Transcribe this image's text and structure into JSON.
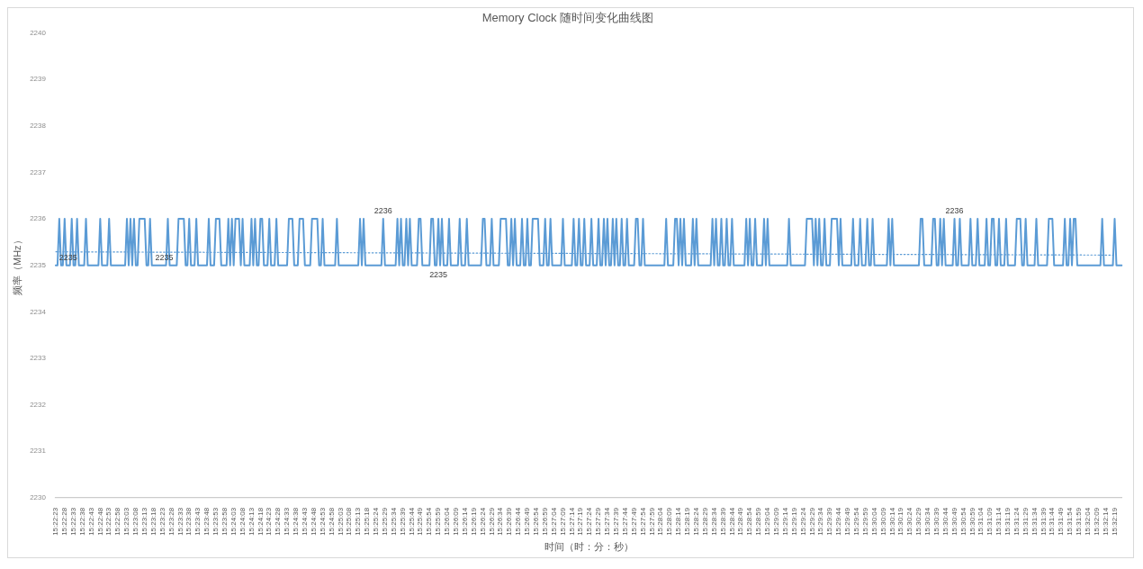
{
  "chart_data": {
    "type": "line",
    "title": "Memory Clock 随时间变化曲线图",
    "xlabel": "时间（时：分：秒）",
    "ylabel": "频率（MHz）",
    "categories": [
      "15:22:23",
      null,
      null,
      null,
      null,
      "15:22:28",
      null,
      null,
      null,
      null,
      "15:22:33",
      null,
      null,
      null,
      null,
      "15:22:38",
      null,
      null,
      null,
      null,
      "15:22:43",
      null,
      null,
      null,
      null,
      "15:22:48",
      null,
      null,
      null,
      null,
      "15:22:53",
      null,
      null,
      null,
      null,
      "15:22:58",
      null,
      null,
      null,
      null,
      "15:23:03",
      null,
      null,
      null,
      null,
      "15:23:08",
      null,
      null,
      null,
      null,
      "15:23:13",
      null,
      null,
      null,
      null,
      "15:23:18",
      null,
      null,
      null,
      null,
      "15:23:23",
      null,
      null,
      null,
      null,
      "15:23:28",
      null,
      null,
      null,
      null,
      "15:23:33",
      null,
      null,
      null,
      null,
      "15:23:38",
      null,
      null,
      null,
      null,
      "15:23:43",
      null,
      null,
      null,
      null,
      "15:23:48",
      null,
      null,
      null,
      null,
      "15:23:53",
      null,
      null,
      null,
      null,
      "15:23:58",
      null,
      null,
      null,
      null,
      "15:24:03",
      null,
      null,
      null,
      null,
      "15:24:08",
      null,
      null,
      null,
      null,
      "15:24:13",
      null,
      null,
      null,
      null,
      "15:24:18",
      null,
      null,
      null,
      null,
      "15:24:23",
      null,
      null,
      null,
      null,
      "15:24:28",
      null,
      null,
      null,
      null,
      "15:24:33",
      null,
      null,
      null,
      null,
      "15:24:38",
      null,
      null,
      null,
      null,
      "15:24:43",
      null,
      null,
      null,
      null,
      "15:24:48",
      null,
      null,
      null,
      null,
      "15:24:53",
      null,
      null,
      null,
      null,
      "15:24:58",
      null,
      null,
      null,
      null,
      "15:25:03",
      null,
      null,
      null,
      null,
      "15:25:08",
      null,
      null,
      null,
      null,
      "15:25:13",
      null,
      null,
      null,
      null,
      "15:25:18",
      null,
      null,
      null,
      null,
      "15:25:24",
      null,
      null,
      null,
      null,
      "15:25:29",
      null,
      null,
      null,
      null,
      "15:25:34",
      null,
      null,
      null,
      null,
      "15:25:39",
      null,
      null,
      null,
      null,
      "15:25:44",
      null,
      null,
      null,
      null,
      "15:25:49",
      null,
      null,
      null,
      null,
      "15:25:54",
      null,
      null,
      null,
      null,
      "15:25:59",
      null,
      null,
      null,
      null,
      "15:26:04",
      null,
      null,
      null,
      null,
      "15:26:09",
      null,
      null,
      null,
      null,
      "15:26:14",
      null,
      null,
      null,
      null,
      "15:26:19",
      null,
      null,
      null,
      null,
      "15:26:24",
      null,
      null,
      null,
      null,
      "15:26:29",
      null,
      null,
      null,
      null,
      "15:26:34",
      null,
      null,
      null,
      null,
      "15:26:39",
      null,
      null,
      null,
      null,
      "15:26:44",
      null,
      null,
      null,
      null,
      "15:26:49",
      null,
      null,
      null,
      null,
      "15:26:54",
      null,
      null,
      null,
      null,
      "15:26:59",
      null,
      null,
      null,
      null,
      "15:27:04",
      null,
      null,
      null,
      null,
      "15:27:09",
      null,
      null,
      null,
      null,
      "15:27:14",
      null,
      null,
      null,
      null,
      "15:27:19",
      null,
      null,
      null,
      null,
      "15:27:24",
      null,
      null,
      null,
      null,
      "15:27:29",
      null,
      null,
      null,
      null,
      "15:27:34",
      null,
      null,
      null,
      null,
      "15:27:39",
      null,
      null,
      null,
      null,
      "15:27:44",
      null,
      null,
      null,
      null,
      "15:27:49",
      null,
      null,
      null,
      null,
      "15:27:54",
      null,
      null,
      null,
      null,
      "15:27:59",
      null,
      null,
      null,
      null,
      "15:28:04",
      null,
      null,
      null,
      null,
      "15:28:09",
      null,
      null,
      null,
      null,
      "15:28:14",
      null,
      null,
      null,
      null,
      "15:28:19",
      null,
      null,
      null,
      null,
      "15:28:24",
      null,
      null,
      null,
      null,
      "15:28:29",
      null,
      null,
      null,
      null,
      "15:28:34",
      null,
      null,
      null,
      null,
      "15:28:39",
      null,
      null,
      null,
      null,
      "15:28:44",
      null,
      null,
      null,
      null,
      "15:28:49",
      null,
      null,
      null,
      null,
      "15:28:54",
      null,
      null,
      null,
      null,
      "15:28:59",
      null,
      null,
      null,
      null,
      "15:29:04",
      null,
      null,
      null,
      null,
      "15:29:09",
      null,
      null,
      null,
      null,
      "15:29:14",
      null,
      null,
      null,
      null,
      "15:29:19",
      null,
      null,
      null,
      null,
      "15:29:24",
      null,
      null,
      null,
      null,
      "15:29:29",
      null,
      null,
      null,
      null,
      "15:29:34",
      null,
      null,
      null,
      null,
      "15:29:39",
      null,
      null,
      null,
      null,
      "15:29:44",
      null,
      null,
      null,
      null,
      "15:29:49",
      null,
      null,
      null,
      null,
      "15:29:54",
      null,
      null,
      null,
      null,
      "15:29:59",
      null,
      null,
      null,
      null,
      "15:30:04",
      null,
      null,
      null,
      null,
      "15:30:09",
      null,
      null,
      null,
      null,
      "15:30:14",
      null,
      null,
      null,
      null,
      "15:30:19",
      null,
      null,
      null,
      null,
      "15:30:24",
      null,
      null,
      null,
      null,
      "15:30:29",
      null,
      null,
      null,
      null,
      "15:30:34",
      null,
      null,
      null,
      null,
      "15:30:39",
      null,
      null,
      null,
      null,
      "15:30:44",
      null,
      null,
      null,
      null,
      "15:30:49",
      null,
      null,
      null,
      null,
      "15:30:54",
      null,
      null,
      null,
      null,
      "15:30:59",
      null,
      null,
      null,
      null,
      "15:31:04",
      null,
      null,
      null,
      null,
      "15:31:09",
      null,
      null,
      null,
      null,
      "15:31:14",
      null,
      null,
      null,
      null,
      "15:31:19",
      null,
      null,
      null,
      null,
      "15:31:24",
      null,
      null,
      null,
      null,
      "15:31:29",
      null,
      null,
      null,
      null,
      "15:31:34",
      null,
      null,
      null,
      null,
      "15:31:39",
      null,
      null,
      null,
      null,
      "15:31:44",
      null,
      null,
      null,
      null,
      "15:31:49",
      null,
      null,
      null,
      null,
      "15:31:54",
      null,
      null,
      null,
      null,
      "15:31:59",
      null,
      null,
      null,
      null,
      "15:32:04",
      null,
      null,
      null,
      null,
      "15:32:09",
      null,
      null,
      null,
      null,
      "15:32:14",
      null,
      null,
      null,
      null,
      "15:32:19",
      null,
      null,
      null,
      null
    ],
    "series": [
      {
        "color": "#5b9bd5",
        "values": [
          2235,
          2235,
          2236,
          2235,
          2235,
          2236,
          2235,
          2235,
          2235,
          2236,
          2235,
          2235,
          2236,
          2235,
          2235,
          2235,
          2235,
          2236,
          2235,
          2235,
          2235,
          2235,
          2235,
          2235,
          2235,
          2236,
          2235,
          2235,
          2235,
          2235,
          2236,
          2235,
          2235,
          2235,
          2235,
          2235,
          2235,
          2235,
          2235,
          2235,
          2236,
          2235,
          2236,
          2235,
          2236,
          2235,
          2235,
          2236,
          2236,
          2236,
          2236,
          2235,
          2235,
          2236,
          2235,
          2235,
          2235,
          2235,
          2235,
          2235,
          2235,
          2235,
          2235,
          2236,
          2235,
          2235,
          2235,
          2235,
          2235,
          2236,
          2236,
          2236,
          2236,
          2235,
          2235,
          2236,
          2235,
          2235,
          2235,
          2236,
          2235,
          2235,
          2235,
          2235,
          2235,
          2235,
          2236,
          2235,
          2235,
          2235,
          2236,
          2236,
          2236,
          2235,
          2235,
          2235,
          2235,
          2236,
          2235,
          2236,
          2235,
          2236,
          2236,
          2236,
          2235,
          2236,
          2235,
          2235,
          2235,
          2235,
          2236,
          2235,
          2236,
          2235,
          2235,
          2236,
          2236,
          2235,
          2235,
          2235,
          2236,
          2235,
          2235,
          2235,
          2236,
          2235,
          2235,
          2235,
          2235,
          2235,
          2235,
          2236,
          2236,
          2236,
          2235,
          2235,
          2235,
          2236,
          2236,
          2236,
          2235,
          2235,
          2235,
          2235,
          2236,
          2236,
          2236,
          2236,
          2235,
          2235,
          2236,
          2235,
          2235,
          2235,
          2235,
          2235,
          2235,
          2235,
          2236,
          2235,
          2235,
          2235,
          2235,
          2235,
          2235,
          2235,
          2235,
          2235,
          2235,
          2235,
          2235,
          2236,
          2235,
          2236,
          2235,
          2235,
          2235,
          2235,
          2235,
          2235,
          2235,
          2235,
          2235,
          2235,
          2236,
          2235,
          2235,
          2235,
          2235,
          2235,
          2235,
          2235,
          2236,
          2235,
          2236,
          2235,
          2235,
          2236,
          2235,
          2236,
          2235,
          2235,
          2235,
          2235,
          2236,
          2236,
          2235,
          2235,
          2235,
          2235,
          2235,
          2236,
          2236,
          2235,
          2235,
          2236,
          2235,
          2236,
          2235,
          2235,
          2235,
          2236,
          2235,
          2235,
          2235,
          2235,
          2235,
          2236,
          2235,
          2235,
          2235,
          2236,
          2235,
          2235,
          2235,
          2235,
          2235,
          2235,
          2235,
          2235,
          2236,
          2236,
          2235,
          2235,
          2235,
          2236,
          2235,
          2235,
          2235,
          2235,
          2236,
          2236,
          2236,
          2236,
          2235,
          2235,
          2236,
          2235,
          2236,
          2235,
          2235,
          2235,
          2236,
          2235,
          2235,
          2236,
          2235,
          2235,
          2236,
          2236,
          2236,
          2236,
          2235,
          2235,
          2235,
          2236,
          2235,
          2235,
          2236,
          2235,
          2235,
          2235,
          2235,
          2235,
          2235,
          2236,
          2235,
          2235,
          2235,
          2235,
          2235,
          2236,
          2235,
          2235,
          2236,
          2235,
          2235,
          2236,
          2235,
          2235,
          2235,
          2236,
          2235,
          2235,
          2235,
          2236,
          2235,
          2235,
          2236,
          2235,
          2236,
          2235,
          2235,
          2236,
          2235,
          2236,
          2235,
          2235,
          2236,
          2235,
          2235,
          2236,
          2235,
          2235,
          2235,
          2235,
          2236,
          2236,
          2235,
          2235,
          2236,
          2235,
          2235,
          2235,
          2235,
          2235,
          2235,
          2235,
          2235,
          2235,
          2235,
          2235,
          2235,
          2236,
          2235,
          2235,
          2235,
          2235,
          2236,
          2236,
          2235,
          2236,
          2235,
          2236,
          2235,
          2235,
          2235,
          2235,
          2236,
          2235,
          2236,
          2235,
          2235,
          2235,
          2235,
          2235,
          2235,
          2235,
          2235,
          2236,
          2235,
          2236,
          2235,
          2235,
          2236,
          2235,
          2235,
          2236,
          2235,
          2235,
          2236,
          2235,
          2235,
          2235,
          2235,
          2235,
          2235,
          2235,
          2236,
          2235,
          2236,
          2235,
          2235,
          2236,
          2235,
          2235,
          2235,
          2235,
          2236,
          2235,
          2236,
          2235,
          2235,
          2235,
          2235,
          2235,
          2235,
          2235,
          2235,
          2235,
          2235,
          2235,
          2236,
          2235,
          2235,
          2235,
          2235,
          2235,
          2235,
          2235,
          2235,
          2235,
          2236,
          2236,
          2236,
          2236,
          2235,
          2236,
          2235,
          2236,
          2235,
          2235,
          2236,
          2235,
          2235,
          2235,
          2236,
          2236,
          2236,
          2236,
          2235,
          2236,
          2235,
          2235,
          2235,
          2235,
          2235,
          2235,
          2236,
          2235,
          2235,
          2235,
          2236,
          2235,
          2235,
          2235,
          2236,
          2235,
          2235,
          2236,
          2235,
          2235,
          2235,
          2235,
          2235,
          2235,
          2235,
          2235,
          2236,
          2235,
          2236,
          2235,
          2235,
          2235,
          2235,
          2235,
          2235,
          2235,
          2235,
          2235,
          2235,
          2235,
          2235,
          2235,
          2235,
          2235,
          2236,
          2236,
          2235,
          2235,
          2235,
          2235,
          2235,
          2236,
          2236,
          2235,
          2235,
          2236,
          2235,
          2236,
          2235,
          2235,
          2235,
          2235,
          2235,
          2236,
          2235,
          2235,
          2236,
          2235,
          2235,
          2235,
          2235,
          2235,
          2236,
          2235,
          2235,
          2235,
          2236,
          2235,
          2235,
          2235,
          2235,
          2236,
          2235,
          2235,
          2236,
          2236,
          2235,
          2235,
          2236,
          2235,
          2235,
          2235,
          2236,
          2235,
          2235,
          2235,
          2235,
          2235,
          2236,
          2236,
          2236,
          2235,
          2235,
          2236,
          2235,
          2235,
          2235,
          2235,
          2235,
          2236,
          2235,
          2235,
          2235,
          2235,
          2235,
          2235,
          2236,
          2236,
          2236,
          2235,
          2235,
          2235,
          2235,
          2235,
          2235,
          2236,
          2235,
          2235,
          2236,
          2235,
          2236,
          2236,
          2235,
          2235,
          2235,
          2235,
          2235,
          2235,
          2235,
          2235,
          2235,
          2235,
          2235,
          2235,
          2235,
          2235,
          2236,
          2235,
          2235,
          2235,
          2235,
          2235,
          2235,
          2236,
          2235,
          2235,
          2235,
          2235
        ],
        "value_labels": [
          null,
          null,
          null,
          null,
          null,
          null,
          null,
          "2235",
          null,
          null,
          null,
          null,
          null,
          null,
          null,
          null,
          null,
          null,
          null,
          null,
          null,
          null,
          null,
          null,
          null,
          null,
          null,
          null,
          null,
          null,
          null,
          null,
          null,
          null,
          null,
          null,
          null,
          null,
          null,
          null,
          null,
          null,
          null,
          null,
          null,
          null,
          null,
          null,
          null,
          null,
          null,
          null,
          null,
          null,
          null,
          null,
          null,
          null,
          null,
          null,
          null,
          "2235",
          null,
          null,
          null,
          null,
          null,
          null,
          null,
          null,
          null,
          null,
          null,
          null,
          null,
          null,
          null,
          null,
          null,
          null,
          null,
          null,
          null,
          null,
          null,
          null,
          null,
          null,
          null,
          null,
          null,
          null,
          null,
          null,
          null,
          null,
          null,
          null,
          null,
          null,
          null,
          null,
          null,
          null,
          null,
          null,
          null,
          null,
          null,
          null,
          null,
          null,
          null,
          null,
          null,
          null,
          null,
          null,
          null,
          null,
          null,
          null,
          null,
          null,
          null,
          null,
          null,
          null,
          null,
          null,
          null,
          null,
          null,
          null,
          null,
          null,
          null,
          null,
          null,
          null,
          null,
          null,
          null,
          null,
          null,
          null,
          null,
          null,
          null,
          null,
          null,
          null,
          null,
          null,
          null,
          null,
          null,
          null,
          null,
          null,
          null,
          null,
          null,
          null,
          null,
          null,
          null,
          null,
          null,
          null,
          null,
          null,
          null,
          null,
          null,
          null,
          null,
          null,
          null,
          null,
          null,
          null,
          null,
          null,
          "2236",
          null,
          null,
          null,
          null,
          null,
          null,
          null,
          null,
          null,
          null,
          null,
          null,
          null,
          null,
          null,
          null,
          null,
          null,
          null,
          null,
          null,
          null,
          null,
          null,
          null,
          null,
          null,
          null,
          "2235",
          null,
          null,
          null,
          null,
          null,
          null,
          null,
          null,
          null,
          null,
          null,
          null,
          null,
          null,
          null,
          null,
          null,
          null,
          null,
          null,
          null,
          null,
          null,
          null,
          null,
          null,
          null,
          null,
          null,
          null,
          null,
          null,
          null,
          null,
          null,
          null,
          null,
          null,
          null,
          null,
          null,
          null,
          null,
          null,
          null,
          null,
          null,
          null,
          null,
          null,
          null,
          null,
          null,
          null,
          null,
          null,
          null,
          null,
          null,
          null,
          null,
          null,
          null,
          null,
          null,
          null,
          null,
          null,
          null,
          null,
          null,
          null,
          null,
          null,
          null,
          null,
          null,
          null,
          null,
          null,
          null,
          null,
          null,
          null,
          null,
          null,
          null,
          null,
          null,
          null,
          null,
          null,
          null,
          null,
          null,
          null,
          null,
          null,
          null,
          null,
          null,
          null,
          null,
          null,
          null,
          null,
          null,
          null,
          null,
          null,
          null,
          null,
          null,
          null,
          null,
          null,
          null,
          null,
          null,
          null,
          null,
          null,
          null,
          null,
          null,
          null,
          null,
          null,
          null,
          null,
          null,
          null,
          null,
          null,
          null,
          null,
          null,
          null,
          null,
          null,
          null,
          null,
          null,
          null,
          null,
          null,
          null,
          null,
          null,
          null,
          null,
          null,
          null,
          null,
          null,
          null,
          null,
          null,
          null,
          null,
          null,
          null,
          null,
          null,
          null,
          null,
          null,
          null,
          null,
          null,
          null,
          null,
          null,
          null,
          null,
          null,
          null,
          null,
          null,
          null,
          null,
          null,
          null,
          null,
          null,
          null,
          null,
          null,
          null,
          null,
          null,
          null,
          null,
          null,
          null,
          null,
          null,
          null,
          null,
          null,
          null,
          null,
          null,
          null,
          null,
          null,
          null,
          null,
          null,
          null,
          null,
          null,
          null,
          null,
          null,
          null,
          null,
          null,
          null,
          null,
          null,
          null,
          null,
          null,
          null,
          null,
          null,
          null,
          null,
          null,
          null,
          null,
          null,
          null,
          null,
          null,
          null,
          null,
          null,
          null,
          null,
          null,
          null,
          null,
          null,
          null,
          null,
          null,
          null,
          null,
          null,
          null,
          null,
          null,
          null,
          null,
          null,
          null,
          null,
          null,
          null,
          null,
          null,
          null,
          null,
          null,
          null,
          null,
          null,
          null,
          null,
          null,
          null,
          null,
          null,
          null,
          null,
          null,
          null,
          null,
          null,
          null,
          null,
          null,
          null,
          null,
          null,
          null,
          null,
          null,
          null,
          "2236",
          null,
          null,
          null,
          null,
          null,
          null,
          null,
          null,
          null,
          null,
          null,
          null,
          null,
          null,
          null,
          null,
          null,
          null,
          null,
          null,
          null,
          null,
          null,
          null,
          null,
          null,
          null,
          null,
          null,
          null,
          null,
          null,
          null,
          null,
          null,
          null,
          null,
          null,
          null,
          null,
          null,
          null,
          null,
          null,
          null,
          null,
          null,
          null,
          null,
          null,
          null,
          null,
          null,
          null,
          null,
          null,
          null,
          null,
          null,
          null,
          null,
          null,
          null,
          null,
          null,
          null,
          null,
          null,
          null,
          null,
          null,
          null,
          null,
          null,
          null,
          null,
          null,
          null,
          null,
          null,
          null,
          null,
          null,
          null,
          null,
          null,
          null,
          null,
          null,
          null,
          null,
          null,
          null,
          null
        ]
      },
      {
        "color": "#5b9bd5",
        "line_style": "dotted",
        "x": [
          "15:22:23",
          "15:32:19"
        ],
        "values": [
          2235.29,
          2235.22
        ]
      }
    ],
    "ylim": [
      2230,
      2240
    ],
    "yticks": [
      2230,
      2231,
      2232,
      2233,
      2234,
      2235,
      2236,
      2237,
      2238,
      2239,
      2240
    ],
    "grid": false,
    "legend": false,
    "marker": "none"
  }
}
